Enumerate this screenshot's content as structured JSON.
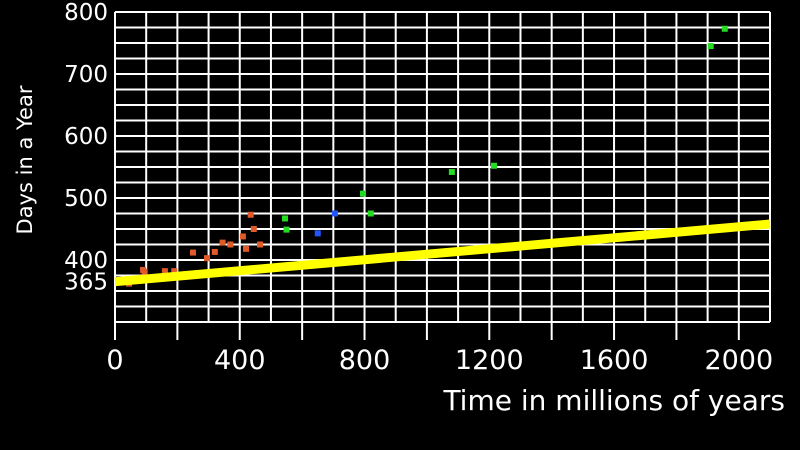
{
  "chart_data": {
    "type": "scatter",
    "title": "",
    "xlabel": "Time in millions of years",
    "ylabel": "Days in a Year",
    "xlim": [
      0,
      2100
    ],
    "ylim": [
      300,
      800
    ],
    "x_ticks": [
      0,
      400,
      800,
      1200,
      1600,
      2000
    ],
    "x_tick_labels": [
      "0",
      "400",
      "800",
      "1200",
      "1600",
      "2000"
    ],
    "y_ticks": [
      365,
      400,
      500,
      600,
      700,
      800
    ],
    "y_tick_labels": [
      "365",
      "400",
      "500",
      "600",
      "700",
      "800"
    ],
    "grid": true,
    "legend": "none",
    "colors": {
      "background": "#000000",
      "grid": "#ffffff",
      "trend_line": "#ffff00",
      "red_series": "#e05a2a",
      "blue_series": "#2255ff",
      "green_series": "#22dd22"
    },
    "series": [
      {
        "color": "red_series",
        "points": [
          {
            "x": 45,
            "y": 362
          },
          {
            "x": 90,
            "y": 384
          },
          {
            "x": 95,
            "y": 381
          },
          {
            "x": 160,
            "y": 382
          },
          {
            "x": 190,
            "y": 382
          },
          {
            "x": 250,
            "y": 412
          },
          {
            "x": 295,
            "y": 403
          },
          {
            "x": 320,
            "y": 413
          },
          {
            "x": 345,
            "y": 428
          },
          {
            "x": 370,
            "y": 425
          },
          {
            "x": 410,
            "y": 438
          },
          {
            "x": 420,
            "y": 418
          },
          {
            "x": 435,
            "y": 473
          },
          {
            "x": 445,
            "y": 450
          },
          {
            "x": 465,
            "y": 425
          }
        ]
      },
      {
        "color": "blue_series",
        "points": [
          {
            "x": 650,
            "y": 443
          },
          {
            "x": 705,
            "y": 475
          }
        ]
      },
      {
        "color": "green_series",
        "points": [
          {
            "x": 545,
            "y": 467
          },
          {
            "x": 550,
            "y": 449
          },
          {
            "x": 795,
            "y": 507
          },
          {
            "x": 820,
            "y": 475
          },
          {
            "x": 1080,
            "y": 542
          },
          {
            "x": 1215,
            "y": 552
          },
          {
            "x": 1910,
            "y": 745
          },
          {
            "x": 1955,
            "y": 773
          }
        ]
      }
    ],
    "trend_line": {
      "points": [
        {
          "x": 0,
          "y": 365
        },
        {
          "x": 2100,
          "y": 458
        }
      ]
    }
  }
}
